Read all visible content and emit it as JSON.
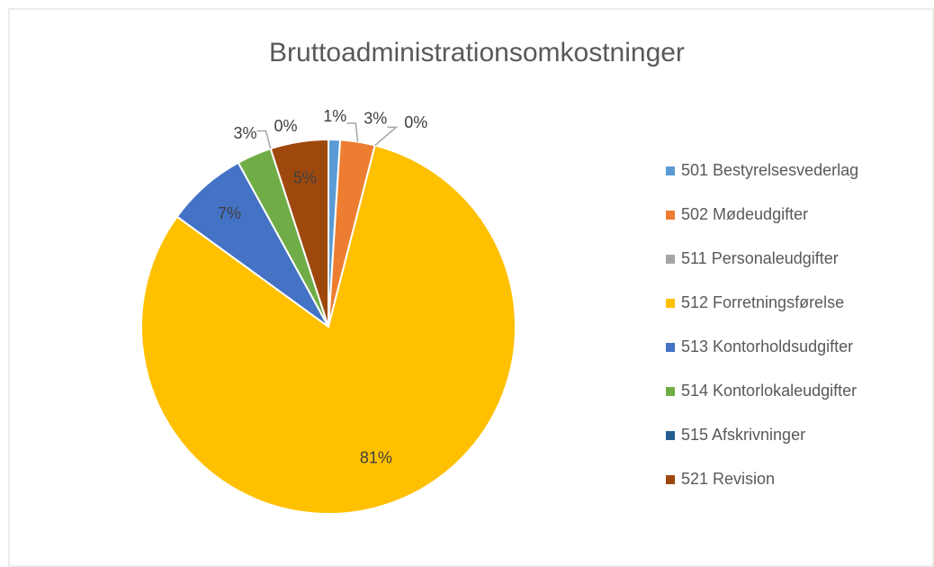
{
  "chart_data": {
    "type": "pie",
    "title": "Bruttoadministrationsomkostninger",
    "categories": [
      "501 Bestyrelsesvederlag",
      "502 Mødeudgifter",
      "511 Personaleudgifter",
      "512 Forretningsførelse",
      "513 Kontorholdsudgifter",
      "514 Kontorlokaleudgifter",
      "515 Afskrivninger",
      "521 Revision"
    ],
    "values": [
      1,
      3,
      0,
      81,
      7,
      3,
      0,
      5
    ],
    "value_labels": [
      "1%",
      "3%",
      "0%",
      "81%",
      "7%",
      "3%",
      "0%",
      "5%"
    ],
    "colors": [
      "#5b9bd5",
      "#ed7d31",
      "#a5a5a5",
      "#ffc000",
      "#4472c4",
      "#70ad47",
      "#255e91",
      "#9e480e"
    ],
    "legend": "right"
  }
}
